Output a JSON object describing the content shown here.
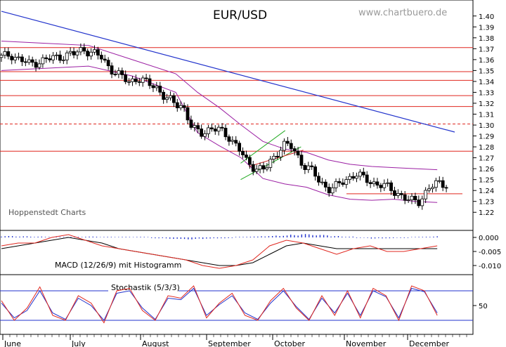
{
  "chart_data": {
    "type": "candlestick",
    "title": "EUR/USD",
    "watermark": "www.chartbuero.de",
    "source_label": "Hoppenstedt Charts",
    "months": [
      "June",
      "July",
      "August",
      "September",
      "October",
      "November",
      "December"
    ],
    "price_axis": {
      "min": 1.215,
      "max": 1.405,
      "ticks": [
        "1.40",
        "1.39",
        "1.38",
        "1.37",
        "1.36",
        "1.35",
        "1.34",
        "1.33",
        "1.32",
        "1.31",
        "1.30",
        "1.29",
        "1.28",
        "1.27",
        "1.26",
        "1.25",
        "1.24",
        "1.23",
        "1.22"
      ]
    },
    "horizontal_levels": [
      {
        "value": 1.371,
        "style": "solid"
      },
      {
        "value": 1.349,
        "style": "solid"
      },
      {
        "value": 1.341,
        "style": "solid"
      },
      {
        "value": 1.327,
        "style": "solid"
      },
      {
        "value": 1.317,
        "style": "solid"
      },
      {
        "value": 1.301,
        "style": "dashed"
      },
      {
        "value": 1.276,
        "style": "solid"
      }
    ],
    "support_line": {
      "value": 1.237
    },
    "trend_line": {
      "x": [
        0,
        1.0
      ],
      "y": [
        1.385,
        1.291
      ]
    },
    "channel": {
      "lower": {
        "x": [
          0.527,
          0.66
        ],
        "y": [
          1.25,
          1.28
        ]
      },
      "upper": {
        "x": [
          0.527,
          0.625
        ],
        "y": [
          1.265,
          1.295
        ]
      },
      "mid": {
        "x": [
          0.545,
          0.665
        ],
        "y": [
          1.262,
          1.277
        ]
      }
    },
    "series": [
      {
        "name": "close",
        "x": [
          0,
          0.02,
          0.04,
          0.06,
          0.08,
          0.1,
          0.12,
          0.14,
          0.16,
          0.18,
          0.2,
          0.22,
          0.24,
          0.26,
          0.28,
          0.3,
          0.32,
          0.34,
          0.36,
          0.38,
          0.4,
          0.42,
          0.44,
          0.46,
          0.48,
          0.5,
          0.52,
          0.54,
          0.56,
          0.58,
          0.6,
          0.62,
          0.64,
          0.66,
          0.68,
          0.7,
          0.72,
          0.74,
          0.76,
          0.78,
          0.8,
          0.82,
          0.84,
          0.86,
          0.88,
          0.9,
          0.92,
          0.94,
          0.96,
          0.98
        ],
        "y": [
          1.362,
          1.365,
          1.36,
          1.356,
          1.358,
          1.36,
          1.362,
          1.364,
          1.365,
          1.37,
          1.366,
          1.362,
          1.352,
          1.345,
          1.34,
          1.343,
          1.338,
          1.336,
          1.325,
          1.32,
          1.318,
          1.296,
          1.293,
          1.297,
          1.295,
          1.29,
          1.28,
          1.266,
          1.261,
          1.259,
          1.27,
          1.283,
          1.279,
          1.266,
          1.26,
          1.248,
          1.242,
          1.244,
          1.25,
          1.256,
          1.25,
          1.247,
          1.245,
          1.24,
          1.236,
          1.23,
          1.23,
          1.242,
          1.246,
          1.246
        ]
      },
      {
        "name": "bollinger_upper",
        "x": [
          0,
          0.1,
          0.2,
          0.3,
          0.4,
          0.45,
          0.5,
          0.55,
          0.6,
          0.65,
          0.7,
          0.75,
          0.8,
          0.85,
          0.9,
          0.95,
          1.0
        ],
        "y": [
          1.377,
          1.375,
          1.373,
          1.36,
          1.347,
          1.33,
          1.316,
          1.3,
          1.285,
          1.278,
          1.275,
          1.268,
          1.264,
          1.262,
          1.261,
          1.26,
          1.259
        ]
      },
      {
        "name": "bollinger_lower",
        "x": [
          0,
          0.1,
          0.2,
          0.3,
          0.4,
          0.45,
          0.5,
          0.55,
          0.6,
          0.65,
          0.7,
          0.75,
          0.8,
          0.85,
          0.9,
          0.95,
          1.0
        ],
        "y": [
          1.35,
          1.352,
          1.354,
          1.345,
          1.33,
          1.293,
          1.281,
          1.27,
          1.251,
          1.246,
          1.243,
          1.236,
          1.232,
          1.231,
          1.232,
          1.23,
          1.229
        ]
      }
    ],
    "macd": {
      "label": "MACD (12/26/9) mit Histogramm",
      "axis": {
        "min": -0.0125,
        "max": 0.0015,
        "ticks": [
          "0.000",
          "-0.005",
          "-0.010"
        ]
      },
      "macd_line": [
        -0.003,
        -0.002,
        -0.002,
        0.0,
        0.001,
        -0.001,
        -0.003,
        -0.004,
        -0.005,
        -0.006,
        -0.007,
        -0.008,
        -0.01,
        -0.011,
        -0.01,
        -0.008,
        -0.003,
        -0.001,
        -0.002,
        -0.004,
        -0.006,
        -0.004,
        -0.003,
        -0.005,
        -0.005,
        -0.004,
        -0.003
      ],
      "signal_line": [
        -0.004,
        -0.003,
        -0.002,
        -0.001,
        0.0,
        -0.001,
        -0.002,
        -0.004,
        -0.005,
        -0.006,
        -0.007,
        -0.008,
        -0.009,
        -0.01,
        -0.01,
        -0.009,
        -0.006,
        -0.003,
        -0.002,
        -0.003,
        -0.004,
        -0.004,
        -0.004,
        -0.004,
        -0.004,
        -0.004,
        -0.004
      ],
      "histogram": [
        0.0005,
        0.0004,
        0.0003,
        0.0002,
        0.0002,
        0.0002,
        0.0003,
        0.0002,
        0.0002,
        0.0002,
        0.0002,
        -0.0003,
        -0.0005,
        -0.0007,
        -0.0006,
        -0.0004,
        -0.0003,
        0.0002,
        0.0003,
        0.0005,
        0.0007,
        0.001,
        0.0012,
        0.0009,
        0.0005,
        0.0003,
        -0.0002,
        -0.0004,
        -0.0003,
        -0.0002,
        0.0002,
        0.0003,
        0.0004
      ]
    },
    "stochastic": {
      "label": "Stochastik (5/3/3)",
      "axis": {
        "min": 0,
        "max": 100,
        "ticks": [
          "50"
        ]
      },
      "levels": [
        80,
        20
      ],
      "k_line": [
        60,
        20,
        45,
        88,
        30,
        20,
        70,
        55,
        15,
        80,
        85,
        40,
        20,
        70,
        65,
        90,
        25,
        55,
        75,
        30,
        20,
        60,
        85,
        45,
        20,
        70,
        30,
        80,
        25,
        85,
        70,
        20,
        90,
        80,
        30
      ],
      "d_line": [
        55,
        25,
        40,
        80,
        35,
        22,
        65,
        50,
        20,
        75,
        80,
        45,
        22,
        65,
        62,
        85,
        30,
        52,
        70,
        35,
        22,
        55,
        80,
        48,
        22,
        65,
        35,
        75,
        30,
        80,
        68,
        25,
        85,
        78,
        35
      ]
    }
  }
}
